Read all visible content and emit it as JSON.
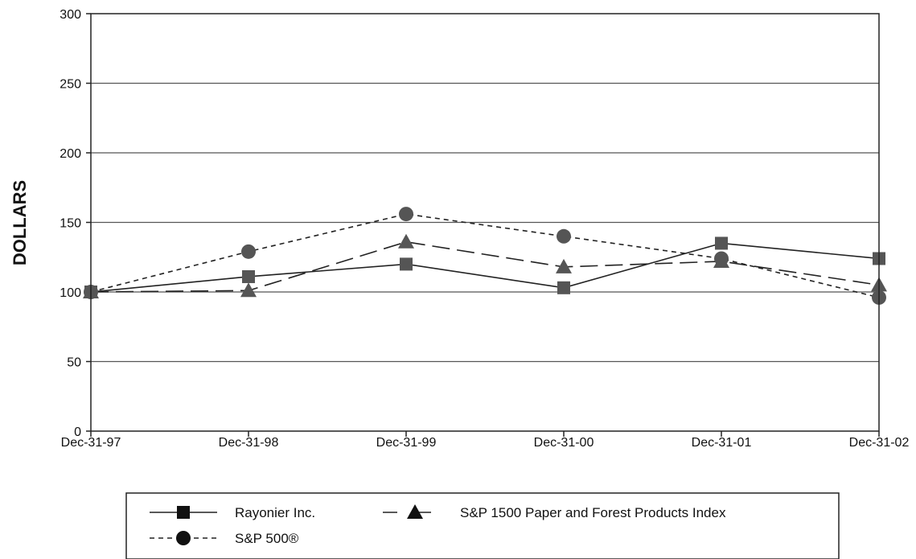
{
  "chart_data": {
    "type": "line",
    "title": "",
    "xlabel": "",
    "ylabel": "DOLLARS",
    "categories": [
      "Dec-31-97",
      "Dec-31-98",
      "Dec-31-99",
      "Dec-31-00",
      "Dec-31-01",
      "Dec-31-02"
    ],
    "yticks": [
      "0",
      "50",
      "100",
      "150",
      "200",
      "250",
      "300"
    ],
    "ylim": [
      0,
      300
    ],
    "grid": "horizontal",
    "legend_position": "bottom",
    "series": [
      {
        "name": "Rayonier Inc.",
        "marker": "square",
        "dash": "solid",
        "color": "#555555",
        "values": [
          100,
          111,
          120,
          103,
          135,
          124
        ]
      },
      {
        "name": "S&P 1500 Paper and Forest Products Index",
        "marker": "triangle",
        "dash": "long-dash",
        "color": "#555555",
        "values": [
          100,
          101,
          136,
          118,
          122,
          105
        ]
      },
      {
        "name": "S&P 500®",
        "marker": "circle",
        "dash": "short-dash",
        "color": "#555555",
        "values": [
          100,
          129,
          156,
          140,
          124,
          96
        ]
      }
    ]
  }
}
